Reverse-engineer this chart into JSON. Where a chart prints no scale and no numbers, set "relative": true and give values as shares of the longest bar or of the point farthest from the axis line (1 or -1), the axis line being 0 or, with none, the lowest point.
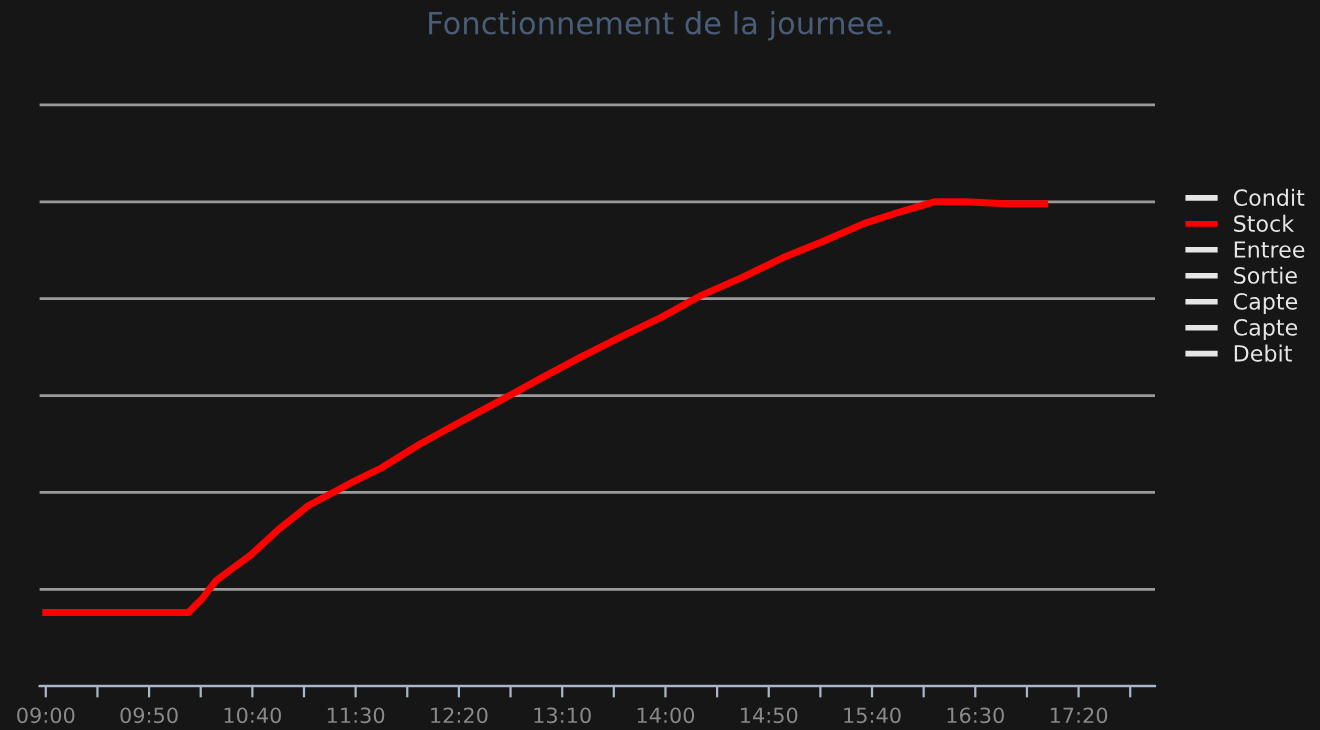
{
  "chart_data": {
    "type": "line",
    "title": "Fonctionnement de la journee.",
    "relative": true,
    "grid": "y",
    "legend": "right",
    "marker": "none",
    "line_style": "solid",
    "xlim": [
      8.95,
      17.95
    ],
    "xticks": [
      {
        "value": 9.0,
        "label": "09:00"
      },
      {
        "value": 9.4167,
        "label": null
      },
      {
        "value": 9.8333,
        "label": "09:50"
      },
      {
        "value": 10.25,
        "label": null
      },
      {
        "value": 10.6667,
        "label": "10:40"
      },
      {
        "value": 11.0833,
        "label": null
      },
      {
        "value": 11.5,
        "label": "11:30"
      },
      {
        "value": 11.9167,
        "label": null
      },
      {
        "value": 12.3333,
        "label": "12:20"
      },
      {
        "value": 12.75,
        "label": null
      },
      {
        "value": 13.1667,
        "label": "13:10"
      },
      {
        "value": 13.5833,
        "label": null
      },
      {
        "value": 14.0,
        "label": "14:00"
      },
      {
        "value": 14.4167,
        "label": null
      },
      {
        "value": 14.8333,
        "label": "14:50"
      },
      {
        "value": 15.25,
        "label": null
      },
      {
        "value": 15.6667,
        "label": "15:40"
      },
      {
        "value": 16.0833,
        "label": null
      },
      {
        "value": 16.5,
        "label": "16:30"
      },
      {
        "value": 16.9167,
        "label": null
      },
      {
        "value": 17.3333,
        "label": "17:20"
      },
      {
        "value": 17.75,
        "label": null
      }
    ],
    "series": [
      {
        "name": "Condit",
        "color": "#e6e6e6"
      },
      {
        "name": "Stock",
        "color": "#ff0000",
        "x": [
          9.0,
          10.15,
          10.26,
          10.37,
          10.5,
          10.65,
          10.88,
          11.12,
          11.45,
          11.71,
          12.02,
          12.34,
          12.67,
          12.99,
          13.32,
          13.64,
          13.97,
          14.29,
          14.62,
          14.95,
          15.27,
          15.6,
          15.84,
          16.17,
          16.42,
          16.74,
          17.06
        ],
        "values": [
          0.152,
          0.152,
          0.18,
          0.217,
          0.242,
          0.27,
          0.324,
          0.373,
          0.418,
          0.451,
          0.5,
          0.545,
          0.59,
          0.635,
          0.68,
          0.721,
          0.762,
          0.807,
          0.844,
          0.885,
          0.918,
          0.955,
          0.975,
          1,
          1,
          0.996,
          0.996
        ]
      },
      {
        "name": "Entree",
        "color": "#e6e6e6"
      },
      {
        "name": "Sortie",
        "color": "#e6e6e6"
      },
      {
        "name": "Capte",
        "color": "#e6e6e6"
      },
      {
        "name": "Capte",
        "color": "#e6e6e6"
      },
      {
        "name": "Debit",
        "color": "#e6e6e6"
      }
    ]
  }
}
